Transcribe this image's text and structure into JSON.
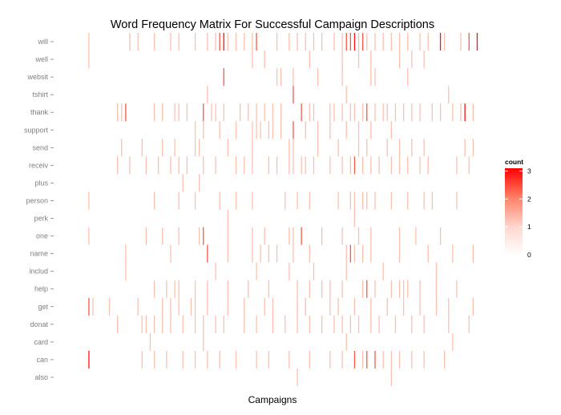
{
  "chart_data": {
    "type": "heatmap",
    "title": "Word Frequency Matrix For Successful Campaign Descriptions",
    "xlabel": "Campaigns",
    "ylabel": "",
    "y_categories": [
      "will",
      "well",
      "websit",
      "tshirt",
      "thank",
      "support",
      "send",
      "receiv",
      "plus",
      "person",
      "perk",
      "one",
      "name",
      "includ",
      "help",
      "get",
      "donat",
      "card",
      "can",
      "also"
    ],
    "x_range": [
      1,
      100
    ],
    "legend": {
      "title": "count",
      "ticks": [
        0,
        1,
        2,
        3
      ],
      "placement": "right",
      "color_low": "#ffffff",
      "color_high": "#ff0000"
    },
    "grid": false,
    "rows": {
      "will": [
        [
          4,
          1
        ],
        [
          14,
          1
        ],
        [
          16,
          1
        ],
        [
          20,
          1
        ],
        [
          24,
          1
        ],
        [
          26,
          1
        ],
        [
          30,
          1
        ],
        [
          33,
          1
        ],
        [
          35,
          1
        ],
        [
          36,
          2
        ],
        [
          37,
          3
        ],
        [
          38,
          1
        ],
        [
          40,
          1
        ],
        [
          42,
          1
        ],
        [
          44,
          1
        ],
        [
          45,
          2
        ],
        [
          50,
          1
        ],
        [
          53,
          1
        ],
        [
          55,
          1
        ],
        [
          57,
          1
        ],
        [
          59,
          1
        ],
        [
          61,
          1
        ],
        [
          64,
          1
        ],
        [
          66,
          1
        ],
        [
          67,
          2
        ],
        [
          68,
          2
        ],
        [
          69,
          3
        ],
        [
          70,
          1
        ],
        [
          71,
          2
        ],
        [
          72,
          1
        ],
        [
          74,
          1
        ],
        [
          76,
          1
        ],
        [
          78,
          1
        ],
        [
          80,
          1
        ],
        [
          82,
          1
        ],
        [
          85,
          1
        ],
        [
          87,
          1
        ],
        [
          90,
          3
        ],
        [
          91,
          1
        ],
        [
          95,
          1
        ],
        [
          97,
          2
        ],
        [
          99,
          3
        ]
      ],
      "well": [
        [
          4,
          1
        ],
        [
          44,
          1
        ],
        [
          47,
          1
        ],
        [
          58,
          1
        ],
        [
          66,
          1
        ],
        [
          70,
          1
        ],
        [
          73,
          1
        ],
        [
          80,
          1
        ],
        [
          83,
          1
        ],
        [
          86,
          1
        ]
      ],
      "websit": [
        [
          37,
          2
        ],
        [
          50,
          1
        ],
        [
          51,
          1
        ],
        [
          54,
          1
        ],
        [
          60,
          1
        ],
        [
          66,
          1
        ],
        [
          73,
          1
        ],
        [
          74,
          1
        ],
        [
          82,
          1
        ]
      ],
      "tshirt": [
        [
          33,
          1
        ],
        [
          54,
          2
        ],
        [
          67,
          1
        ],
        [
          92,
          1
        ]
      ],
      "thank": [
        [
          11,
          1
        ],
        [
          12,
          1
        ],
        [
          13,
          2
        ],
        [
          20,
          1
        ],
        [
          22,
          1
        ],
        [
          25,
          1
        ],
        [
          26,
          1
        ],
        [
          28,
          1
        ],
        [
          32,
          2
        ],
        [
          34,
          1
        ],
        [
          35,
          1
        ],
        [
          37,
          1
        ],
        [
          41,
          1
        ],
        [
          43,
          1
        ],
        [
          45,
          1
        ],
        [
          47,
          1
        ],
        [
          49,
          1
        ],
        [
          51,
          1
        ],
        [
          56,
          2
        ],
        [
          58,
          1
        ],
        [
          59,
          1
        ],
        [
          63,
          1
        ],
        [
          64,
          1
        ],
        [
          66,
          1
        ],
        [
          68,
          1
        ],
        [
          69,
          1
        ],
        [
          71,
          1
        ],
        [
          72,
          2
        ],
        [
          74,
          1
        ],
        [
          76,
          1
        ],
        [
          77,
          1
        ],
        [
          79,
          1
        ],
        [
          81,
          1
        ],
        [
          83,
          1
        ],
        [
          85,
          1
        ],
        [
          88,
          1
        ],
        [
          90,
          1
        ],
        [
          93,
          1
        ],
        [
          95,
          1
        ],
        [
          96,
          3
        ],
        [
          98,
          1
        ]
      ],
      "support": [
        [
          30,
          1
        ],
        [
          32,
          1
        ],
        [
          36,
          1
        ],
        [
          40,
          1
        ],
        [
          44,
          1
        ],
        [
          45,
          1
        ],
        [
          46,
          1
        ],
        [
          48,
          1
        ],
        [
          49,
          1
        ],
        [
          51,
          1
        ],
        [
          54,
          2
        ],
        [
          57,
          1
        ],
        [
          60,
          1
        ],
        [
          63,
          1
        ],
        [
          67,
          1
        ],
        [
          70,
          1
        ],
        [
          73,
          1
        ],
        [
          78,
          1
        ]
      ],
      "send": [
        [
          12,
          1
        ],
        [
          17,
          1
        ],
        [
          22,
          1
        ],
        [
          25,
          1
        ],
        [
          30,
          1
        ],
        [
          31,
          1
        ],
        [
          38,
          1
        ],
        [
          44,
          1
        ],
        [
          53,
          1
        ],
        [
          54,
          1
        ],
        [
          60,
          1
        ],
        [
          65,
          1
        ],
        [
          70,
          1
        ],
        [
          72,
          1
        ],
        [
          77,
          1
        ],
        [
          80,
          1
        ],
        [
          83,
          1
        ],
        [
          86,
          1
        ],
        [
          96,
          1
        ],
        [
          98,
          1
        ]
      ],
      "receiv": [
        [
          11,
          1
        ],
        [
          14,
          1
        ],
        [
          18,
          1
        ],
        [
          21,
          1
        ],
        [
          24,
          1
        ],
        [
          26,
          1
        ],
        [
          28,
          1
        ],
        [
          32,
          1
        ],
        [
          35,
          1
        ],
        [
          40,
          1
        ],
        [
          42,
          1
        ],
        [
          44,
          1
        ],
        [
          48,
          1
        ],
        [
          50,
          1
        ],
        [
          53,
          1
        ],
        [
          54,
          1
        ],
        [
          56,
          1
        ],
        [
          57,
          1
        ],
        [
          59,
          1
        ],
        [
          63,
          1
        ],
        [
          66,
          1
        ],
        [
          68,
          1
        ],
        [
          69,
          2
        ],
        [
          71,
          1
        ],
        [
          73,
          1
        ],
        [
          75,
          1
        ],
        [
          78,
          1
        ],
        [
          80,
          1
        ],
        [
          82,
          1
        ],
        [
          85,
          1
        ],
        [
          87,
          1
        ],
        [
          94,
          1
        ],
        [
          97,
          1
        ]
      ],
      "plus": [
        [
          27,
          1
        ],
        [
          31,
          1
        ]
      ],
      "person": [
        [
          4,
          1
        ],
        [
          20,
          1
        ],
        [
          26,
          1
        ],
        [
          30,
          1
        ],
        [
          36,
          1
        ],
        [
          40,
          1
        ],
        [
          44,
          1
        ],
        [
          52,
          1
        ],
        [
          55,
          1
        ],
        [
          58,
          1
        ],
        [
          65,
          1
        ],
        [
          68,
          1
        ],
        [
          69,
          1
        ],
        [
          71,
          1
        ],
        [
          72,
          1
        ],
        [
          74,
          1
        ],
        [
          78,
          1
        ],
        [
          82,
          1
        ],
        [
          86,
          1
        ],
        [
          88,
          1
        ],
        [
          94,
          1
        ]
      ],
      "perk": [
        [
          38,
          1
        ],
        [
          69,
          1
        ]
      ],
      "one": [
        [
          4,
          1
        ],
        [
          18,
          1
        ],
        [
          22,
          1
        ],
        [
          26,
          1
        ],
        [
          31,
          1
        ],
        [
          32,
          2
        ],
        [
          38,
          1
        ],
        [
          44,
          1
        ],
        [
          47,
          1
        ],
        [
          53,
          1
        ],
        [
          54,
          1
        ],
        [
          56,
          2
        ],
        [
          61,
          1
        ],
        [
          66,
          1
        ],
        [
          70,
          1
        ],
        [
          73,
          1
        ],
        [
          80,
          1
        ],
        [
          84,
          1
        ],
        [
          90,
          1
        ]
      ],
      "name": [
        [
          13,
          1
        ],
        [
          24,
          1
        ],
        [
          33,
          2
        ],
        [
          38,
          1
        ],
        [
          44,
          1
        ],
        [
          46,
          1
        ],
        [
          48,
          1
        ],
        [
          50,
          1
        ],
        [
          54,
          1
        ],
        [
          58,
          1
        ],
        [
          67,
          1
        ],
        [
          68,
          2
        ],
        [
          69,
          1
        ],
        [
          71,
          1
        ],
        [
          73,
          1
        ],
        [
          80,
          1
        ],
        [
          87,
          1
        ],
        [
          93,
          1
        ],
        [
          98,
          1
        ]
      ],
      "includ": [
        [
          13,
          1
        ],
        [
          35,
          1
        ],
        [
          45,
          1
        ],
        [
          53,
          1
        ],
        [
          59,
          1
        ],
        [
          67,
          1
        ],
        [
          76,
          1
        ],
        [
          89,
          1
        ]
      ],
      "help": [
        [
          20,
          1
        ],
        [
          23,
          1
        ],
        [
          25,
          1
        ],
        [
          26,
          1
        ],
        [
          30,
          1
        ],
        [
          33,
          1
        ],
        [
          38,
          1
        ],
        [
          43,
          1
        ],
        [
          48,
          1
        ],
        [
          55,
          1
        ],
        [
          58,
          1
        ],
        [
          61,
          1
        ],
        [
          63,
          1
        ],
        [
          66,
          1
        ],
        [
          71,
          1
        ],
        [
          72,
          2
        ],
        [
          74,
          1
        ],
        [
          78,
          1
        ],
        [
          80,
          1
        ],
        [
          81,
          1
        ],
        [
          82,
          1
        ],
        [
          85,
          1
        ],
        [
          89,
          1
        ],
        [
          94,
          1
        ]
      ],
      "get": [
        [
          4,
          2
        ],
        [
          5,
          1
        ],
        [
          9,
          1
        ],
        [
          16,
          1
        ],
        [
          22,
          1
        ],
        [
          24,
          1
        ],
        [
          26,
          1
        ],
        [
          29,
          1
        ],
        [
          30,
          1
        ],
        [
          33,
          1
        ],
        [
          38,
          1
        ],
        [
          42,
          1
        ],
        [
          47,
          1
        ],
        [
          49,
          1
        ],
        [
          55,
          1
        ],
        [
          57,
          1
        ],
        [
          63,
          1
        ],
        [
          65,
          1
        ],
        [
          69,
          1
        ],
        [
          73,
          1
        ],
        [
          77,
          1
        ],
        [
          81,
          1
        ],
        [
          85,
          1
        ],
        [
          89,
          1
        ],
        [
          92,
          1
        ],
        [
          98,
          1
        ]
      ],
      "donat": [
        [
          11,
          1
        ],
        [
          17,
          1
        ],
        [
          18,
          1
        ],
        [
          20,
          1
        ],
        [
          22,
          1
        ],
        [
          24,
          1
        ],
        [
          27,
          1
        ],
        [
          30,
          1
        ],
        [
          32,
          1
        ],
        [
          35,
          1
        ],
        [
          37,
          1
        ],
        [
          42,
          1
        ],
        [
          45,
          1
        ],
        [
          49,
          1
        ],
        [
          52,
          1
        ],
        [
          55,
          1
        ],
        [
          58,
          1
        ],
        [
          61,
          1
        ],
        [
          64,
          1
        ],
        [
          66,
          1
        ],
        [
          68,
          1
        ],
        [
          70,
          1
        ],
        [
          73,
          1
        ],
        [
          75,
          1
        ],
        [
          79,
          1
        ],
        [
          83,
          1
        ],
        [
          86,
          1
        ],
        [
          92,
          1
        ],
        [
          97,
          1
        ]
      ],
      "card": [
        [
          19,
          1
        ],
        [
          32,
          1
        ],
        [
          67,
          1
        ],
        [
          93,
          1
        ]
      ],
      "can": [
        [
          4,
          3
        ],
        [
          17,
          1
        ],
        [
          20,
          1
        ],
        [
          23,
          1
        ],
        [
          27,
          1
        ],
        [
          30,
          1
        ],
        [
          33,
          1
        ],
        [
          36,
          1
        ],
        [
          40,
          1
        ],
        [
          45,
          1
        ],
        [
          48,
          1
        ],
        [
          53,
          1
        ],
        [
          58,
          1
        ],
        [
          63,
          1
        ],
        [
          66,
          1
        ],
        [
          69,
          2
        ],
        [
          71,
          1
        ],
        [
          72,
          2
        ],
        [
          74,
          2
        ],
        [
          76,
          1
        ],
        [
          78,
          1
        ],
        [
          80,
          1
        ],
        [
          83,
          1
        ],
        [
          86,
          1
        ],
        [
          91,
          1
        ]
      ],
      "also": [
        [
          55,
          1
        ],
        [
          78,
          1
        ]
      ]
    }
  }
}
